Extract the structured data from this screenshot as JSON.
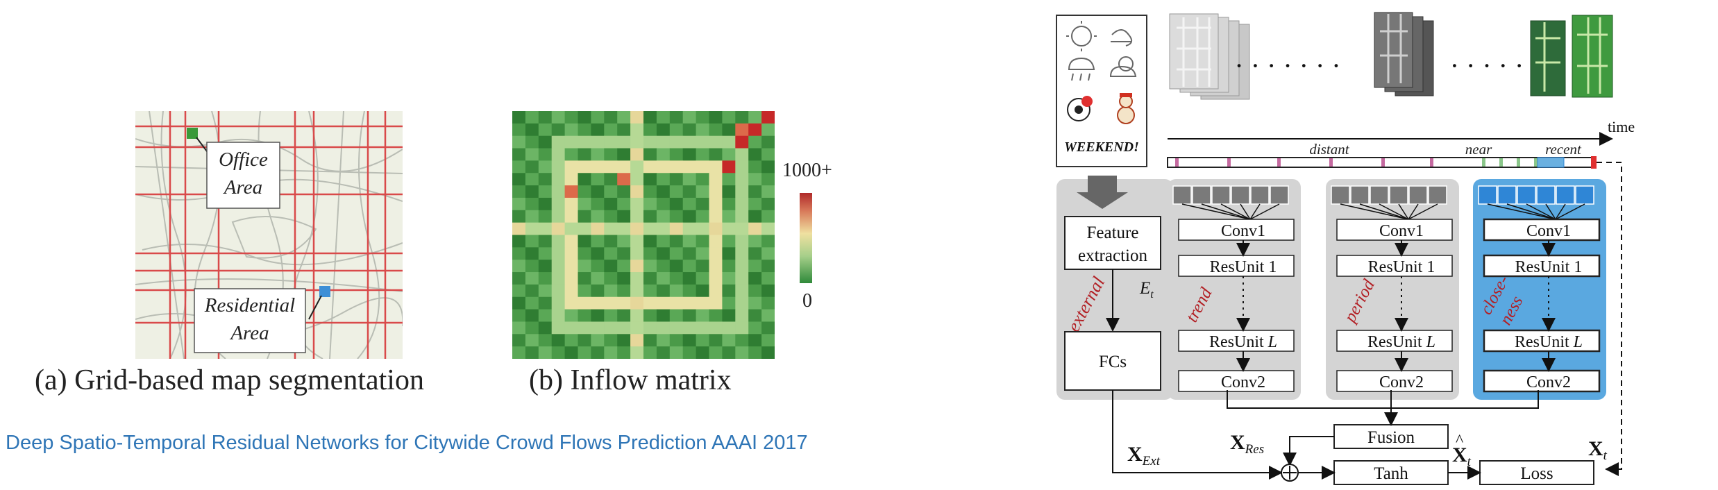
{
  "left_figure": {
    "office_label_1": "Office",
    "office_label_2": "Area",
    "residential_label_1": "Residential",
    "residential_label_2": "Area",
    "caption_a": "(a) Grid-based map segmentation",
    "caption_b": "(b) Inflow matrix",
    "scale_max": "1000+",
    "scale_min": "0",
    "colors": {
      "office": "#3a9a3a",
      "residential": "#3d8fd6",
      "road": "#d94a4a",
      "heat_low": "#2f7d32",
      "heat_high": "#c62828"
    }
  },
  "footer": {
    "text": "Deep Spatio-Temporal Residual Networks for Citywide Crowd Flows Prediction  AAAI 2017"
  },
  "architecture": {
    "weekend_text": "WEEKEND!",
    "time_label": "time",
    "timeline_labels": {
      "distant": "distant",
      "near": "near",
      "recent": "recent"
    },
    "external": {
      "feature_extraction_1": "Feature",
      "feature_extraction_2": "extraction",
      "e_t": "E",
      "e_t_sub": "t",
      "side_label": "external",
      "fcs": "FCs"
    },
    "branches": [
      {
        "side_label": "trend",
        "conv1": "Conv1",
        "resunit1": "ResUnit 1",
        "resunitL": "ResUnit",
        "L": "L",
        "conv2": "Conv2"
      },
      {
        "side_label": "period",
        "conv1": "Conv1",
        "resunit1": "ResUnit 1",
        "resunitL": "ResUnit",
        "L": "L",
        "conv2": "Conv2"
      },
      {
        "side_label_1": "close-",
        "side_label_2": "ness",
        "conv1": "Conv1",
        "resunit1": "ResUnit 1",
        "resunitL": "ResUnit",
        "L": "L",
        "conv2": "Conv2"
      }
    ],
    "fusion": "Fusion",
    "tanh": "Tanh",
    "loss": "Loss",
    "x_res": "X",
    "x_res_sub": "Res",
    "x_ext": "X",
    "x_ext_sub": "Ext",
    "x_hat": "X",
    "x_hat_sub": "t",
    "x_t": "X",
    "x_t_sub": "t",
    "colors": {
      "branch_gray": "#d4d4d4",
      "closeness_blue": "#5aa8e0",
      "side_label_red": "#b21f24",
      "block_gray": "#7a7a7a",
      "block_blue": "#2f86d6"
    }
  }
}
